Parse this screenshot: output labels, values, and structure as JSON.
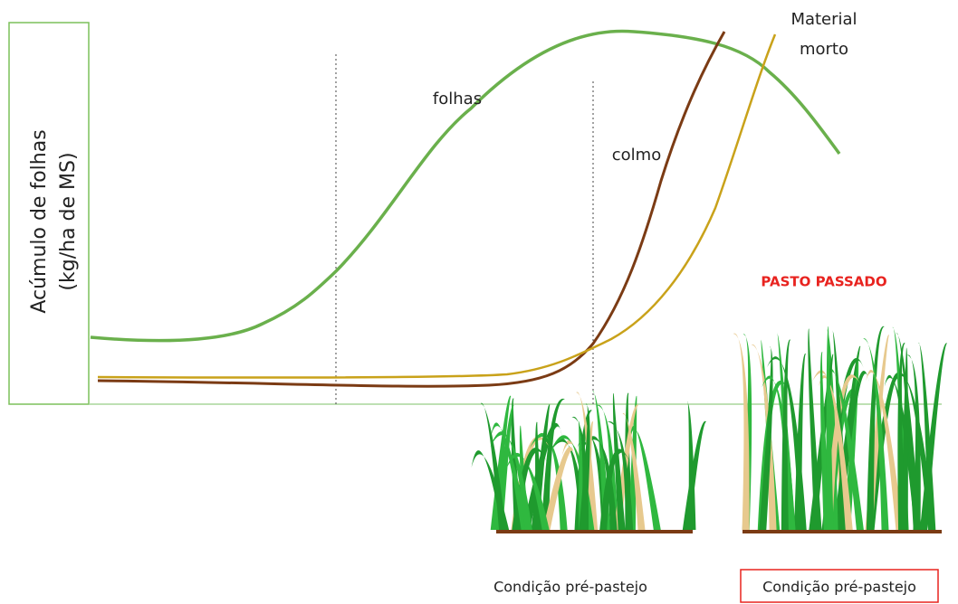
{
  "axis": {
    "y_label": [
      "Acúmulo de folhas",
      "(kg/ha de MS)"
    ]
  },
  "curves": [
    {
      "label": "folhas"
    },
    {
      "label": "colmo"
    },
    {
      "label": [
        "Material",
        "morto"
      ]
    }
  ],
  "panels": [
    {
      "caption": "Condição pré-pastejo"
    },
    {
      "title": "PASTO PASSADO",
      "caption": "Condição pré-pastejo"
    }
  ]
}
